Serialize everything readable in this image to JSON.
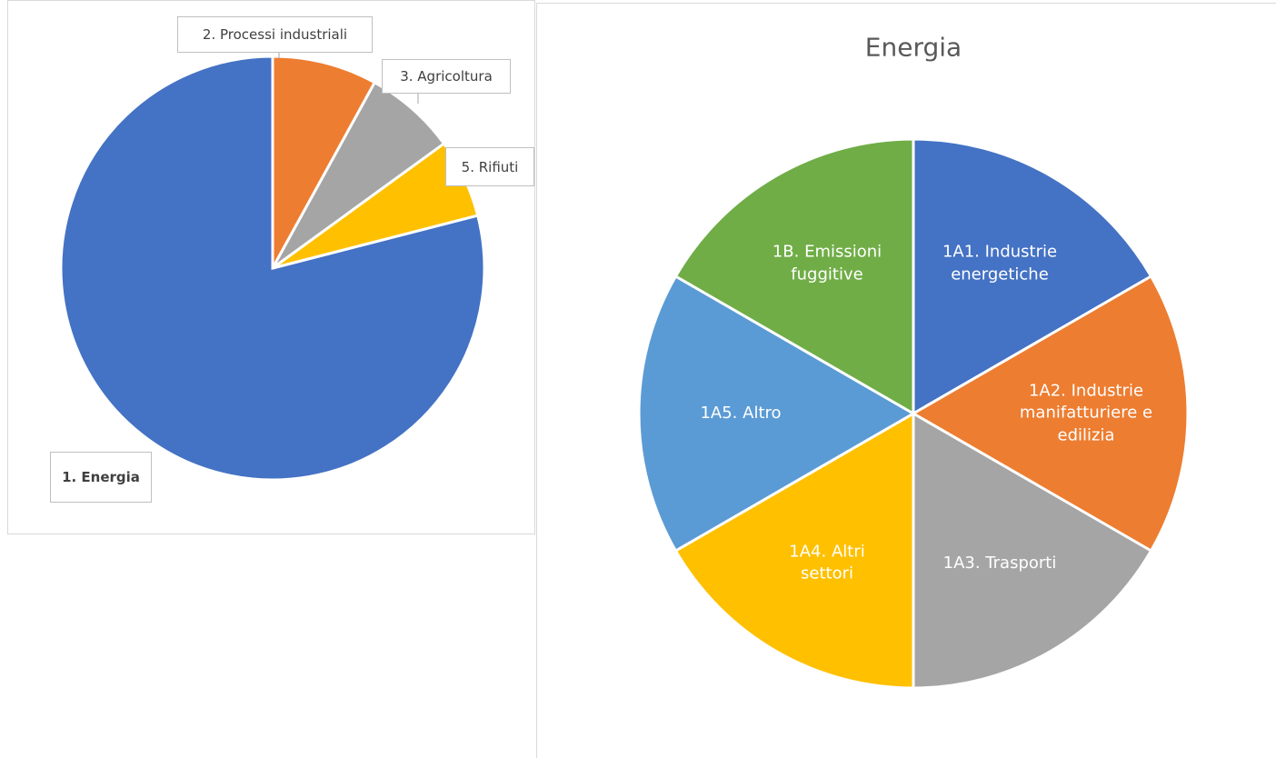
{
  "chart_data": [
    {
      "type": "pie",
      "categories": [
        "1. Energia",
        "2. Processi industriali",
        "3. Agricoltura",
        "5. Rifiuti"
      ],
      "values": [
        79,
        8,
        7,
        6
      ],
      "colors": [
        "#4472c4",
        "#ed7d31",
        "#a5a5a5",
        "#ffc000"
      ]
    },
    {
      "type": "pie",
      "title": "Energia",
      "categories": [
        "1A1. Industrie energetiche",
        "1A2. Industrie manifatturiere e edilizia",
        "1A3. Trasporti",
        "1A4. Altri settori",
        "1A5. Altro",
        "1B. Emissioni fuggitive"
      ],
      "values": [
        16.7,
        16.7,
        16.7,
        16.7,
        16.7,
        16.7
      ],
      "colors": [
        "#4472c4",
        "#ed7d31",
        "#a5a5a5",
        "#ffc000",
        "#5b9bd5",
        "#70ad47"
      ]
    }
  ]
}
